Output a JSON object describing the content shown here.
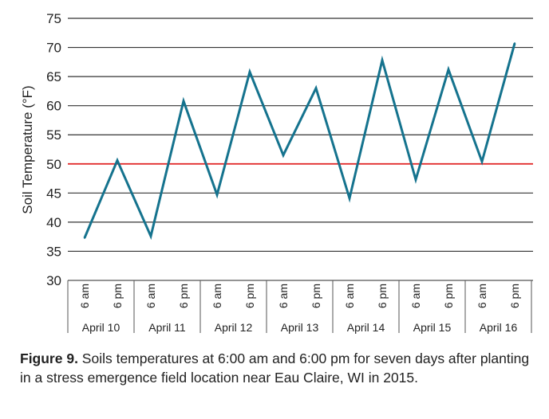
{
  "chart_data": {
    "type": "line",
    "title": "",
    "ylabel": "Soil Temperature (°F)",
    "xlabel": "",
    "ylim": [
      30,
      75
    ],
    "yticks": [
      30,
      35,
      40,
      45,
      50,
      55,
      60,
      65,
      70,
      75
    ],
    "days": [
      "April 10",
      "April 11",
      "April 12",
      "April 13",
      "April 14",
      "April 15",
      "April 16"
    ],
    "times": [
      "6 am",
      "6 pm"
    ],
    "grid": true,
    "reference_line": {
      "value": 50,
      "color": "#e02020"
    },
    "series": [
      {
        "name": "Soil temperature",
        "color": "#15738e",
        "values": [
          37.3,
          50.6,
          37.6,
          60.8,
          44.7,
          65.8,
          51.5,
          63.0,
          44.1,
          67.8,
          47.3,
          66.2,
          50.4,
          70.7
        ]
      }
    ]
  },
  "caption": {
    "label": "Figure 9.",
    "text": " Soils temperatures at 6:00 am and 6:00 pm for seven days after planting in a stress emergence field location near Eau Claire, WI in 2015."
  }
}
